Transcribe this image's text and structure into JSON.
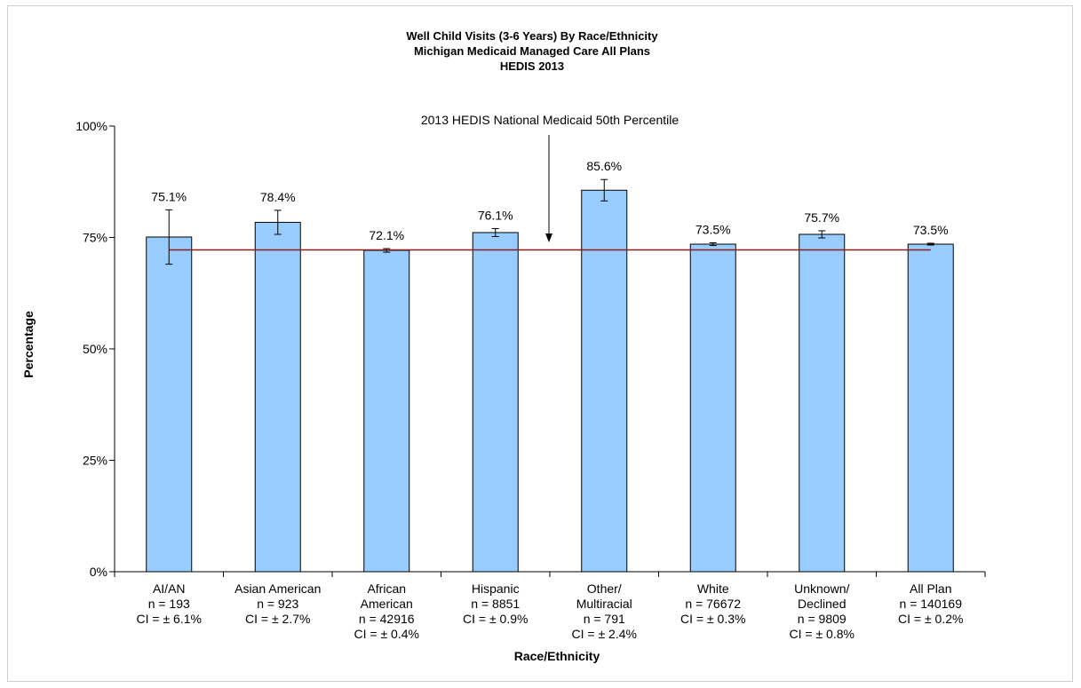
{
  "chart_data": {
    "type": "bar",
    "title": "Well Child Visits (3-6 Years) By Race/Ethnicity",
    "subtitle_lines": [
      "Michigan Medicaid Managed Care All Plans",
      "HEDIS 2013"
    ],
    "xlabel": "Race/Ethnicity",
    "ylabel": "Percentage",
    "ylim": [
      0,
      100
    ],
    "yticks": [
      {
        "value": 0,
        "label": "0%"
      },
      {
        "value": 25,
        "label": "25%"
      },
      {
        "value": 50,
        "label": "50%"
      },
      {
        "value": 75,
        "label": "75%"
      },
      {
        "value": 100,
        "label": "100%"
      }
    ],
    "categories": [
      {
        "lines": [
          "AI/AN",
          "n = 193",
          "CI = ± 6.1%"
        ]
      },
      {
        "lines": [
          "Asian American",
          "n = 923",
          "CI = ± 2.7%"
        ]
      },
      {
        "lines": [
          "African",
          "American",
          "n = 42916",
          "CI = ± 0.4%"
        ]
      },
      {
        "lines": [
          "Hispanic",
          "n = 8851",
          "CI = ± 0.9%"
        ]
      },
      {
        "lines": [
          "Other/",
          "Multiracial",
          "n = 791",
          "CI = ± 2.4%"
        ]
      },
      {
        "lines": [
          "White",
          "n = 76672",
          "CI = ± 0.3%"
        ]
      },
      {
        "lines": [
          "Unknown/",
          "Declined",
          "n = 9809",
          "CI = ± 0.8%"
        ]
      },
      {
        "lines": [
          "All Plan",
          "n = 140169",
          "CI = ± 0.2%"
        ]
      }
    ],
    "values": [
      75.1,
      78.4,
      72.1,
      76.1,
      85.6,
      73.5,
      75.7,
      73.5
    ],
    "value_labels": [
      "75.1%",
      "78.4%",
      "72.1%",
      "76.1%",
      "85.6%",
      "73.5%",
      "75.7%",
      "73.5%"
    ],
    "ci": [
      6.1,
      2.7,
      0.4,
      0.9,
      2.4,
      0.3,
      0.8,
      0.2
    ],
    "reference_line": {
      "value": 72.2,
      "label": "2013 HEDIS National Medicaid 50th Percentile",
      "color": "#8b1a1a"
    },
    "grid": false,
    "legend": "none",
    "bar_color": "#99ccff",
    "bar_edge_color": "#000000"
  }
}
